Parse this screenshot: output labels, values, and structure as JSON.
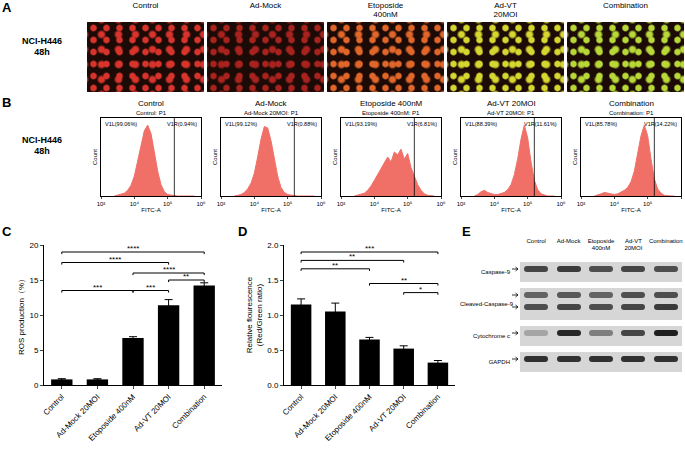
{
  "panel_letters": [
    "A",
    "B",
    "C",
    "D",
    "E"
  ],
  "row_labels": [
    "NCI-H446\n48h",
    "NCI-H446\n48h"
  ],
  "micrographs": {
    "labels": [
      "Control",
      "Ad-Mock",
      "Etoposide\n400nM",
      "Ad-VT\n20MOI",
      "Combination"
    ],
    "colors": [
      "#d8342c",
      "#a8221e",
      "#e0662a",
      "#d6d630",
      "#b8d838"
    ]
  },
  "chart_data": [
    {
      "type": "area",
      "title": "Control",
      "subtitle": "Control: P1",
      "x_label": "FITC-A",
      "y_label": "Count",
      "x": [
        2512,
        3162,
        3981,
        5012,
        6310,
        7943,
        10000,
        12589,
        15849,
        19953,
        25119,
        31623,
        39811,
        50119,
        63096,
        79433,
        100000,
        125893,
        158489,
        199526,
        251189,
        316228,
        398107,
        501187,
        630957
      ],
      "values": [
        0,
        1,
        2,
        4,
        8,
        15,
        28,
        48,
        72,
        92,
        100,
        88,
        62,
        35,
        16,
        6,
        2,
        1,
        0,
        0,
        0,
        0,
        0,
        0,
        0
      ],
      "color": "#f07068",
      "log": "x",
      "xlim": [
        1000,
        1000000
      ],
      "xticks": [
        {
          "value": 1000,
          "label": "10³"
        },
        {
          "value": 10000,
          "label": "10⁴"
        },
        {
          "value": 100000,
          "label": "10⁵"
        },
        {
          "value": 1000000,
          "label": "10⁶"
        }
      ],
      "ylim": [
        0,
        110
      ],
      "tick_labels": "x",
      "grid": false,
      "gate": 158489,
      "gate_labels": [
        "V1L(99.06%)",
        "V1R(0.94%)"
      ]
    },
    {
      "type": "area",
      "title": "Ad-Mock",
      "subtitle": "Ad-Mock 20MOI: P1",
      "x_label": "FITC-A",
      "y_label": "Count",
      "x": [
        2512,
        3162,
        3981,
        5012,
        6310,
        7943,
        10000,
        12589,
        15849,
        19953,
        25119,
        31623,
        39811,
        50119,
        63096,
        79433,
        100000,
        125893,
        158489,
        199526,
        251189,
        316228,
        398107,
        501187,
        630957
      ],
      "values": [
        0,
        1,
        2,
        5,
        10,
        18,
        32,
        55,
        80,
        98,
        96,
        78,
        52,
        28,
        12,
        5,
        2,
        1,
        0,
        0,
        0,
        0,
        0,
        0,
        0
      ],
      "color": "#f07068",
      "log": "x",
      "xlim": [
        1000,
        1000000
      ],
      "xticks": [
        {
          "value": 1000,
          "label": "10³"
        },
        {
          "value": 10000,
          "label": "10⁴"
        },
        {
          "value": 100000,
          "label": "10⁵"
        },
        {
          "value": 1000000,
          "label": "10⁶"
        }
      ],
      "ylim": [
        0,
        110
      ],
      "tick_labels": "x",
      "grid": false,
      "gate": 158489,
      "gate_labels": [
        "V1L(99.12%)",
        "V1R(0.88%)"
      ]
    },
    {
      "type": "area",
      "title": "Etoposide 400nM",
      "subtitle": "Etoposide 400nM: P1",
      "x_label": "FITC-A",
      "y_label": "Count",
      "x": [
        2512,
        3162,
        3981,
        5012,
        6310,
        7943,
        10000,
        12589,
        15849,
        19953,
        25119,
        31623,
        39811,
        50119,
        63096,
        79433,
        100000,
        125893,
        158489,
        199526,
        251189,
        316228,
        398107,
        501187,
        630957
      ],
      "values": [
        0,
        1,
        2,
        4,
        8,
        14,
        22,
        30,
        38,
        45,
        55,
        48,
        62,
        58,
        66,
        52,
        60,
        40,
        28,
        16,
        8,
        3,
        1,
        0,
        0
      ],
      "color": "#f07068",
      "log": "x",
      "xlim": [
        1000,
        1000000
      ],
      "xticks": [
        {
          "value": 1000,
          "label": "10³"
        },
        {
          "value": 10000,
          "label": "10⁴"
        },
        {
          "value": 100000,
          "label": "10⁵"
        },
        {
          "value": 1000000,
          "label": "10⁶"
        }
      ],
      "ylim": [
        0,
        110
      ],
      "tick_labels": "x",
      "grid": false,
      "gate": 158489,
      "gate_labels": [
        "V1L(93.19%)",
        "V1R(6.81%)"
      ]
    },
    {
      "type": "area",
      "title": "Ad-VT 20MOI",
      "subtitle": "Ad-VT 20MOI: P1",
      "x_label": "FITC-A",
      "y_label": "Count",
      "x": [
        2512,
        3162,
        3981,
        5012,
        6310,
        7943,
        10000,
        12589,
        15849,
        19953,
        25119,
        31623,
        39811,
        50119,
        63096,
        79433,
        100000,
        125893,
        158489,
        199526,
        251189,
        316228,
        398107,
        501187,
        630957
      ],
      "values": [
        0,
        2,
        6,
        8,
        5,
        3,
        2,
        2,
        3,
        5,
        9,
        16,
        30,
        52,
        80,
        100,
        82,
        48,
        22,
        9,
        3,
        1,
        0,
        0,
        0
      ],
      "color": "#f07068",
      "log": "x",
      "xlim": [
        1000,
        1000000
      ],
      "xticks": [
        {
          "value": 1000,
          "label": "10³"
        },
        {
          "value": 10000,
          "label": "10⁴"
        },
        {
          "value": 100000,
          "label": "10⁵"
        },
        {
          "value": 1000000,
          "label": "10⁶"
        }
      ],
      "ylim": [
        0,
        110
      ],
      "tick_labels": "x",
      "grid": false,
      "gate": 158489,
      "gate_labels": [
        "V1L(88.39%)",
        "V1R(11.61%)"
      ]
    },
    {
      "type": "area",
      "title": "Combination",
      "subtitle": "Combination: P1",
      "x_label": "FITC-A",
      "y_label": "Count",
      "x": [
        2512,
        3162,
        3981,
        5012,
        6310,
        7943,
        10000,
        12589,
        15849,
        19953,
        25119,
        31623,
        39811,
        50119,
        63096,
        79433,
        100000,
        125893,
        158489,
        199526,
        251189,
        316228,
        398107,
        501187,
        630957
      ],
      "values": [
        0,
        1,
        3,
        5,
        4,
        2,
        2,
        3,
        5,
        8,
        12,
        20,
        35,
        58,
        85,
        100,
        85,
        52,
        24,
        10,
        4,
        1,
        0,
        0,
        0
      ],
      "color": "#f07068",
      "log": "x",
      "xlim": [
        1000,
        1000000
      ],
      "xticks": [
        {
          "value": 1000,
          "label": "10³"
        },
        {
          "value": 10000,
          "label": "10⁴"
        },
        {
          "value": 100000,
          "label": "10⁵"
        },
        {
          "value": 1000000,
          "label": "10⁶"
        }
      ],
      "ylim": [
        0,
        110
      ],
      "tick_labels": "x",
      "grid": false,
      "gate": 158489,
      "gate_labels": [
        "V1L(85.78%)",
        "V1R(14.22%)"
      ]
    },
    {
      "type": "bar",
      "y_label": "ROS production（%）",
      "categories": [
        "Control",
        "Ad-Mock 20MOI",
        "Etoposide 400nM",
        "Ad-VT 20MOI",
        "Combination"
      ],
      "values": [
        0.8,
        0.8,
        6.7,
        11.4,
        14.2
      ],
      "errors": [
        0.1,
        0.1,
        0.2,
        0.8,
        0.4
      ],
      "color": "#000000",
      "ylim": [
        0,
        20
      ],
      "yticks": [
        0,
        5,
        10,
        15,
        20
      ],
      "grid": false,
      "comparisons": [
        {
          "from": "Control",
          "to": "Combination",
          "label": "****",
          "y": 19
        },
        {
          "from": "Control",
          "to": "Ad-VT 20MOI",
          "label": "****",
          "y": 17.5
        },
        {
          "from": "Etoposide 400nM",
          "to": "Combination",
          "label": "****",
          "y": 16
        },
        {
          "from": "Ad-VT 20MOI",
          "to": "Combination",
          "label": "**",
          "y": 15
        },
        {
          "from": "Control",
          "to": "Etoposide 400nM",
          "label": "***",
          "y": 13.5
        },
        {
          "from": "Etoposide 400nM",
          "to": "Ad-VT 20MOI",
          "label": "***",
          "y": 13.5
        }
      ]
    },
    {
      "type": "bar",
      "y_label": "Relative flourescence\n(Red/Green ratio)",
      "categories": [
        "Control",
        "Ad-Mock 20MOI",
        "Etoposide 400nM",
        "Ad-VT 20MOI",
        "Combination"
      ],
      "values": [
        1.15,
        1.05,
        0.65,
        0.52,
        0.32
      ],
      "errors": [
        0.08,
        0.12,
        0.03,
        0.04,
        0.03
      ],
      "color": "#000000",
      "ylim": [
        0,
        2
      ],
      "yticks": [
        {
          "value": 0,
          "label": "0.0"
        },
        {
          "value": 0.5,
          "label": "0.5"
        },
        {
          "value": 1,
          "label": "1.0"
        },
        {
          "value": 1.5,
          "label": "1.5"
        },
        {
          "value": 2,
          "label": "2.0"
        }
      ],
      "grid": false,
      "comparisons": [
        {
          "from": "Control",
          "to": "Combination",
          "label": "***",
          "y": 1.9
        },
        {
          "from": "Control",
          "to": "Ad-VT 20MOI",
          "label": "**",
          "y": 1.78
        },
        {
          "from": "Control",
          "to": "Etoposide 400nM",
          "label": "**",
          "y": 1.66
        },
        {
          "from": "Etoposide 400nM",
          "to": "Combination",
          "label": "**",
          "y": 1.45
        },
        {
          "from": "Ad-VT 20MOI",
          "to": "Combination",
          "label": "*",
          "y": 1.32
        }
      ]
    }
  ],
  "blot": {
    "lanes": [
      "Control",
      "Ad-Mock",
      "Etoposide 400nM",
      "Ad-VT 20MOI",
      "Combination"
    ],
    "rows": [
      {
        "label": "Caspase-9",
        "bands": [
          [
            0.75,
            0.8,
            0.7,
            0.75,
            0.7
          ]
        ]
      },
      {
        "label": "Cleaved-Caspase-9",
        "bands": [
          [
            0.6,
            0.65,
            0.6,
            0.7,
            0.7
          ],
          [
            0.7,
            0.75,
            0.7,
            0.75,
            0.8
          ]
        ]
      },
      {
        "label": "Cytochrome c",
        "bands": [
          [
            0.25,
            0.9,
            0.45,
            0.75,
            0.95
          ]
        ]
      },
      {
        "label": "GAPDH",
        "bands": [
          [
            0.85,
            0.85,
            0.85,
            0.85,
            0.85
          ]
        ]
      }
    ]
  }
}
